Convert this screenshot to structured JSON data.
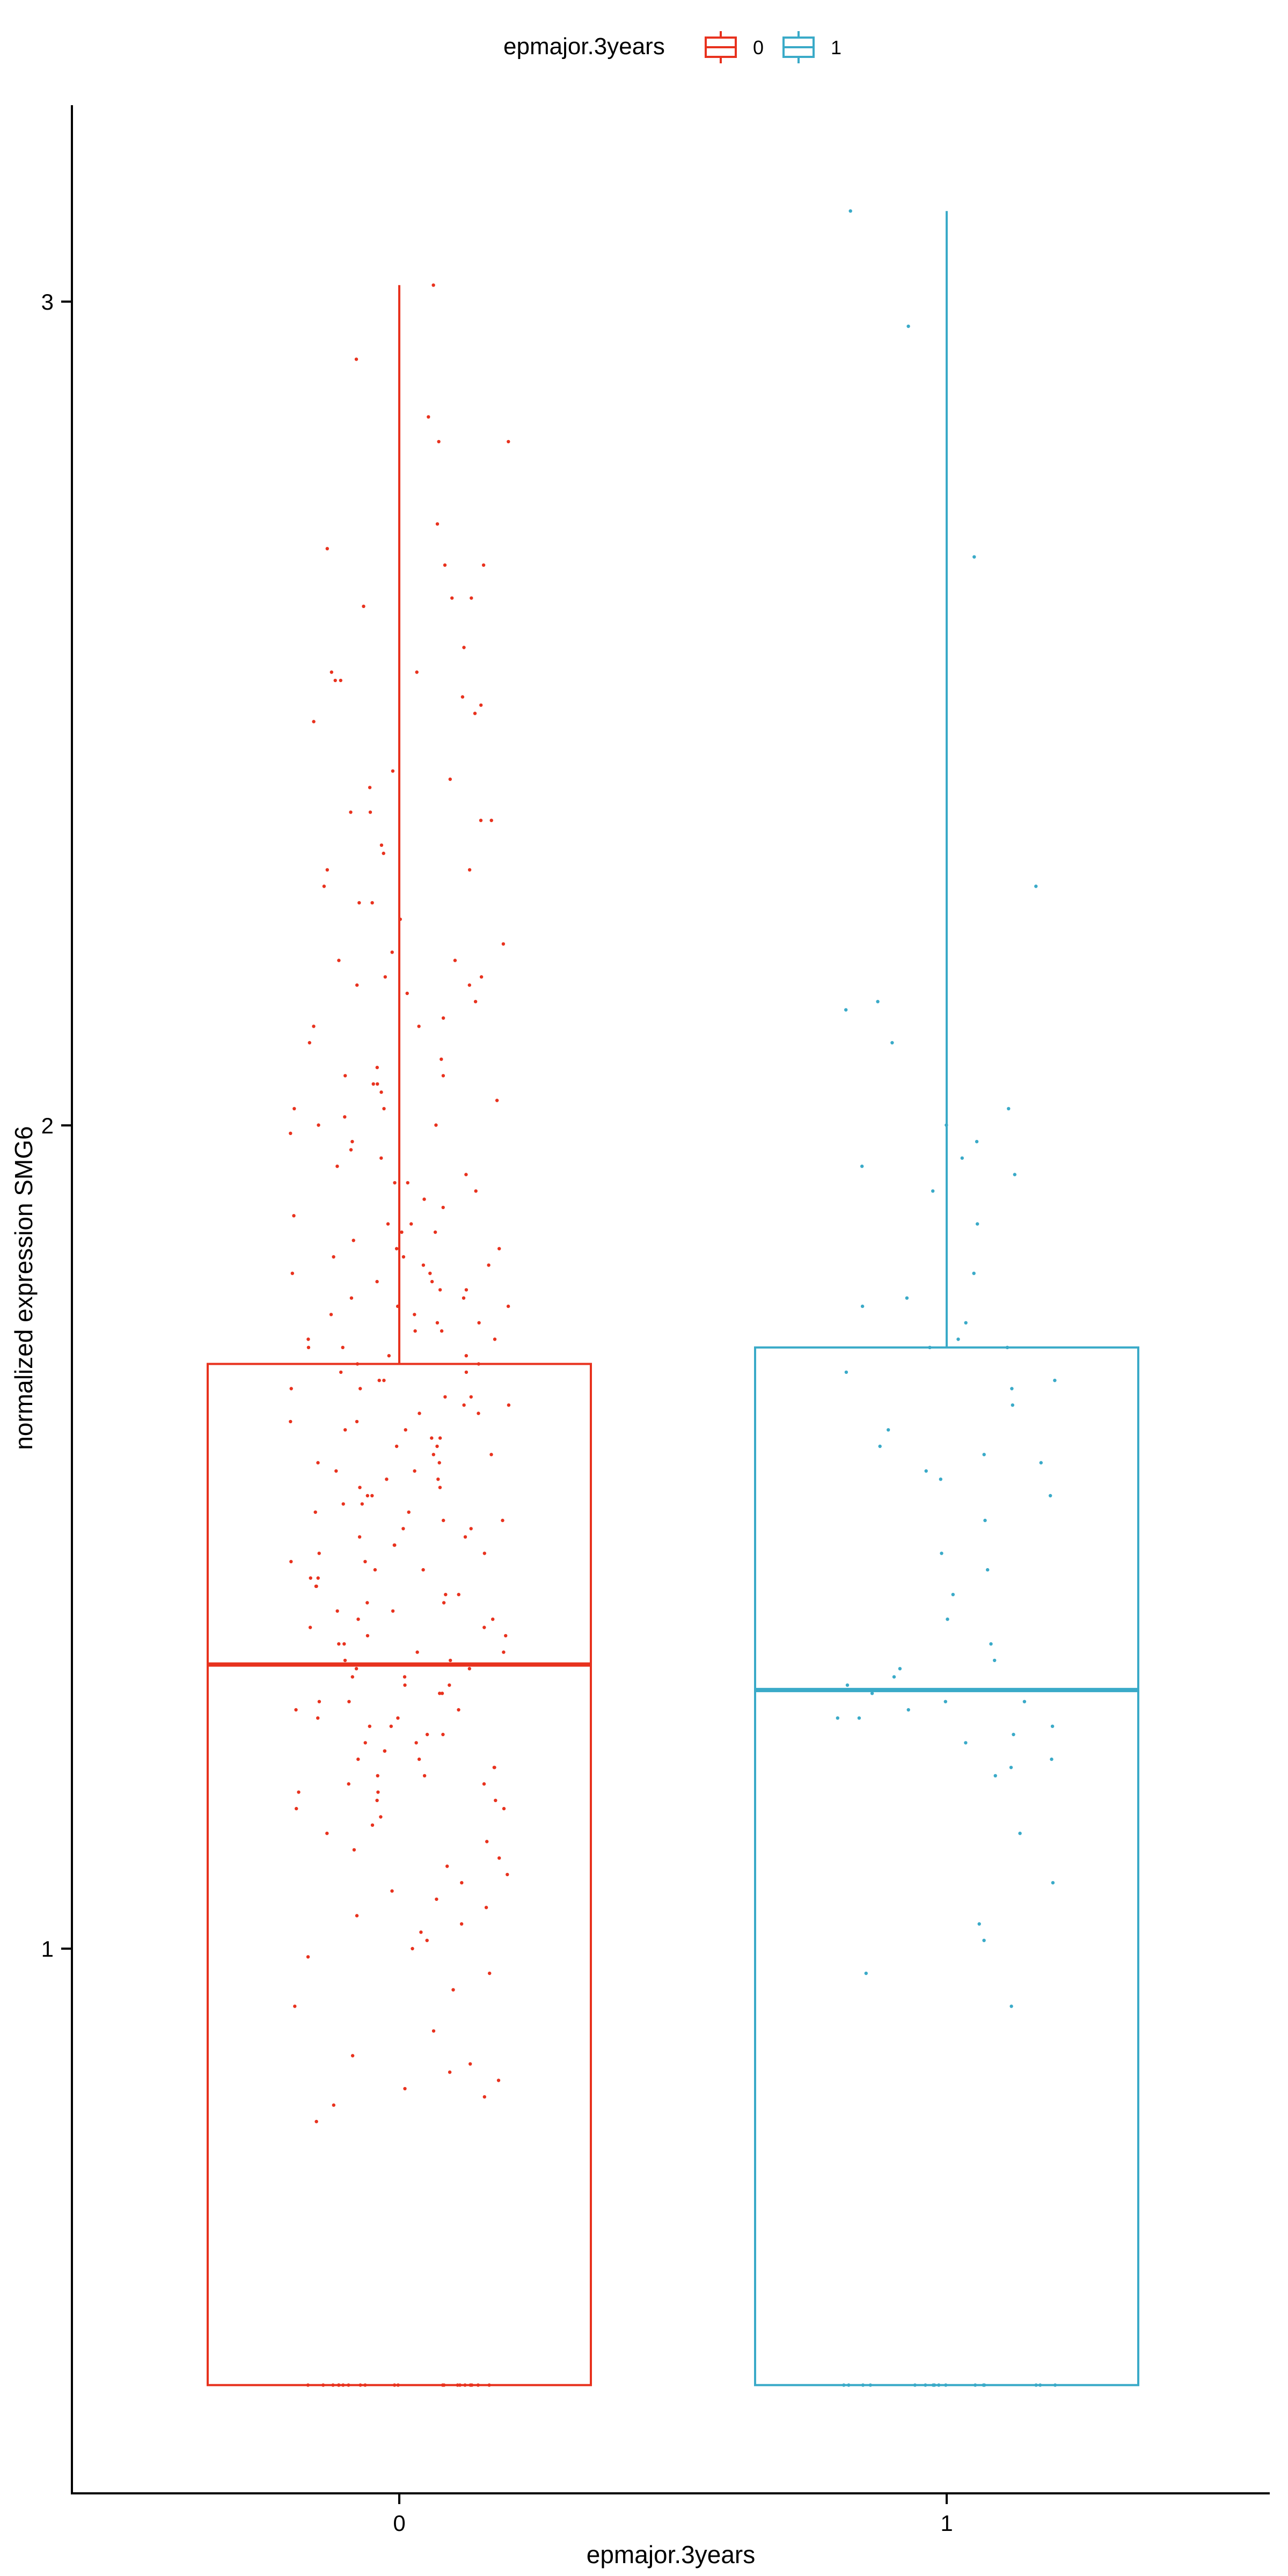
{
  "chart_data": {
    "type": "box",
    "title": "",
    "xlabel": "epmajor.3years",
    "ylabel": "normalized expression SMG6",
    "ylim": [
      0.25,
      3.3
    ],
    "y_ticks": [
      1,
      2,
      3
    ],
    "x_categories": [
      "0",
      "1"
    ],
    "grid": false,
    "legend": {
      "title": "epmajor.3years",
      "position": "top",
      "entries": [
        "0",
        "1"
      ]
    },
    "colors": {
      "0": "#E8321E",
      "1": "#3AAAC8"
    },
    "series": [
      {
        "name": "0",
        "box": {
          "lower": 0.47,
          "q1": 0.47,
          "median": 1.345,
          "q3": 1.71,
          "upper": 3.02
        },
        "points_y": [
          3.02,
          2.93,
          2.86,
          2.83,
          2.83,
          2.73,
          2.7,
          2.68,
          2.68,
          2.64,
          2.64,
          2.63,
          2.58,
          2.55,
          2.55,
          2.54,
          2.54,
          2.52,
          2.51,
          2.5,
          2.49,
          2.43,
          2.42,
          2.41,
          2.38,
          2.38,
          2.37,
          2.37,
          2.34,
          2.33,
          2.31,
          2.31,
          2.29,
          2.27,
          2.27,
          2.25,
          2.22,
          2.21,
          2.2,
          2.2,
          2.18,
          2.18,
          2.17,
          2.17,
          2.16,
          2.15,
          2.13,
          2.12,
          2.12,
          2.1,
          2.08,
          2.07,
          2.06,
          2.06,
          2.05,
          2.05,
          2.04,
          2.03,
          2.02,
          2.02,
          2.01,
          2.0,
          2.0,
          1.99,
          1.98,
          1.97,
          1.96,
          1.95,
          1.94,
          1.93,
          1.93,
          1.92,
          1.91,
          1.9,
          1.89,
          1.88,
          1.88,
          1.87,
          1.87,
          1.86,
          1.85,
          1.85,
          1.84,
          1.84,
          1.83,
          1.83,
          1.82,
          1.82,
          1.81,
          1.81,
          1.8,
          1.8,
          1.79,
          1.79,
          1.78,
          1.78,
          1.77,
          1.77,
          1.76,
          1.76,
          1.75,
          1.75,
          1.74,
          1.74,
          1.73,
          1.73,
          1.72,
          1.72,
          1.71,
          1.71,
          1.7,
          1.7,
          1.69,
          1.69,
          1.68,
          1.68,
          1.67,
          1.67,
          1.66,
          1.66,
          1.65,
          1.65,
          1.64,
          1.64,
          1.63,
          1.63,
          1.62,
          1.62,
          1.61,
          1.61,
          1.6,
          1.6,
          1.59,
          1.59,
          1.58,
          1.58,
          1.57,
          1.57,
          1.56,
          1.56,
          1.55,
          1.55,
          1.54,
          1.54,
          1.53,
          1.53,
          1.52,
          1.52,
          1.51,
          1.51,
          1.5,
          1.5,
          1.49,
          1.49,
          1.48,
          1.48,
          1.47,
          1.47,
          1.46,
          1.46,
          1.45,
          1.45,
          1.44,
          1.44,
          1.43,
          1.43,
          1.42,
          1.42,
          1.41,
          1.41,
          1.4,
          1.4,
          1.39,
          1.39,
          1.38,
          1.38,
          1.37,
          1.37,
          1.36,
          1.36,
          1.35,
          1.35,
          1.34,
          1.34,
          1.33,
          1.33,
          1.32,
          1.32,
          1.31,
          1.31,
          1.3,
          1.3,
          1.29,
          1.29,
          1.28,
          1.28,
          1.27,
          1.27,
          1.26,
          1.26,
          1.25,
          1.25,
          1.24,
          1.24,
          1.23,
          1.23,
          1.22,
          1.22,
          1.21,
          1.21,
          1.2,
          1.2,
          1.19,
          1.19,
          1.18,
          1.18,
          1.17,
          1.17,
          1.16,
          1.15,
          1.14,
          1.13,
          1.12,
          1.11,
          1.1,
          1.09,
          1.08,
          1.07,
          1.06,
          1.05,
          1.04,
          1.03,
          1.02,
          1.01,
          1.0,
          0.99,
          0.97,
          0.95,
          0.93,
          0.9,
          0.87,
          0.86,
          0.85,
          0.84,
          0.83,
          0.82,
          0.81,
          0.79,
          0.47,
          0.47,
          0.47,
          0.47,
          0.47,
          0.47,
          0.47,
          0.47,
          0.47,
          0.47,
          0.47,
          0.47,
          0.47,
          0.47,
          0.47,
          0.47,
          0.47,
          0.47,
          0.47,
          0.47
        ]
      },
      {
        "name": "1",
        "box": {
          "lower": 0.47,
          "q1": 0.47,
          "median": 1.314,
          "q3": 1.73,
          "upper": 3.11
        },
        "points_y": [
          3.11,
          2.97,
          2.69,
          2.29,
          2.15,
          2.14,
          2.1,
          2.02,
          2.0,
          1.98,
          1.96,
          1.95,
          1.94,
          1.92,
          1.88,
          1.82,
          1.79,
          1.78,
          1.76,
          1.74,
          1.73,
          1.73,
          1.7,
          1.69,
          1.68,
          1.66,
          1.63,
          1.61,
          1.6,
          1.59,
          1.58,
          1.57,
          1.55,
          1.52,
          1.48,
          1.46,
          1.43,
          1.4,
          1.37,
          1.35,
          1.34,
          1.33,
          1.32,
          1.31,
          1.3,
          1.3,
          1.29,
          1.28,
          1.28,
          1.27,
          1.26,
          1.25,
          1.23,
          1.22,
          1.21,
          1.14,
          1.08,
          1.03,
          1.01,
          0.97,
          0.93,
          0.47,
          0.47,
          0.47,
          0.47,
          0.47,
          0.47,
          0.47,
          0.47,
          0.47,
          0.47,
          0.47,
          0.47,
          0.47,
          0.47,
          0.47,
          0.47
        ]
      }
    ]
  },
  "legend_title": "epmajor.3years",
  "legend_labels": [
    "0",
    "1"
  ],
  "axis": {
    "y_ticks": [
      "1",
      "2",
      "3"
    ],
    "x_ticks": [
      "0",
      "1"
    ],
    "xlabel": "epmajor.3years",
    "ylabel": "normalized expression SMG6"
  }
}
